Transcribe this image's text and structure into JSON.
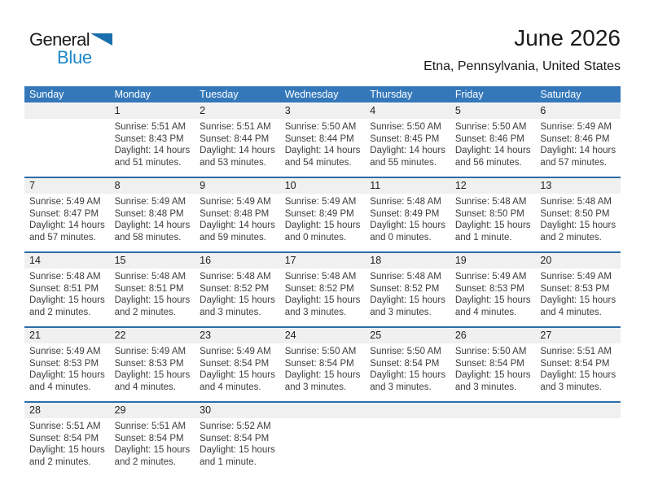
{
  "logo": {
    "part1": "General",
    "part2": "Blue",
    "triangle_icon": "blue-right-triangle"
  },
  "header": {
    "title": "June 2026",
    "subtitle": "Etna, Pennsylvania, United States"
  },
  "colors": {
    "header_bg": "#3478ba",
    "week_divider": "#2d6da8",
    "day_band_bg": "#f0f0f0",
    "logo_blue": "#1f87c9",
    "triangle_blue": "#1a6fae"
  },
  "calendar": {
    "day_headers": [
      "Sunday",
      "Monday",
      "Tuesday",
      "Wednesday",
      "Thursday",
      "Friday",
      "Saturday"
    ],
    "weeks": [
      [
        null,
        {
          "day": "1",
          "sunrise": "Sunrise: 5:51 AM",
          "sunset": "Sunset: 8:43 PM",
          "daylight": "Daylight: 14 hours and 51 minutes."
        },
        {
          "day": "2",
          "sunrise": "Sunrise: 5:51 AM",
          "sunset": "Sunset: 8:44 PM",
          "daylight": "Daylight: 14 hours and 53 minutes."
        },
        {
          "day": "3",
          "sunrise": "Sunrise: 5:50 AM",
          "sunset": "Sunset: 8:44 PM",
          "daylight": "Daylight: 14 hours and 54 minutes."
        },
        {
          "day": "4",
          "sunrise": "Sunrise: 5:50 AM",
          "sunset": "Sunset: 8:45 PM",
          "daylight": "Daylight: 14 hours and 55 minutes."
        },
        {
          "day": "5",
          "sunrise": "Sunrise: 5:50 AM",
          "sunset": "Sunset: 8:46 PM",
          "daylight": "Daylight: 14 hours and 56 minutes."
        },
        {
          "day": "6",
          "sunrise": "Sunrise: 5:49 AM",
          "sunset": "Sunset: 8:46 PM",
          "daylight": "Daylight: 14 hours and 57 minutes."
        }
      ],
      [
        {
          "day": "7",
          "sunrise": "Sunrise: 5:49 AM",
          "sunset": "Sunset: 8:47 PM",
          "daylight": "Daylight: 14 hours and 57 minutes."
        },
        {
          "day": "8",
          "sunrise": "Sunrise: 5:49 AM",
          "sunset": "Sunset: 8:48 PM",
          "daylight": "Daylight: 14 hours and 58 minutes."
        },
        {
          "day": "9",
          "sunrise": "Sunrise: 5:49 AM",
          "sunset": "Sunset: 8:48 PM",
          "daylight": "Daylight: 14 hours and 59 minutes."
        },
        {
          "day": "10",
          "sunrise": "Sunrise: 5:49 AM",
          "sunset": "Sunset: 8:49 PM",
          "daylight": "Daylight: 15 hours and 0 minutes."
        },
        {
          "day": "11",
          "sunrise": "Sunrise: 5:48 AM",
          "sunset": "Sunset: 8:49 PM",
          "daylight": "Daylight: 15 hours and 0 minutes."
        },
        {
          "day": "12",
          "sunrise": "Sunrise: 5:48 AM",
          "sunset": "Sunset: 8:50 PM",
          "daylight": "Daylight: 15 hours and 1 minute."
        },
        {
          "day": "13",
          "sunrise": "Sunrise: 5:48 AM",
          "sunset": "Sunset: 8:50 PM",
          "daylight": "Daylight: 15 hours and 2 minutes."
        }
      ],
      [
        {
          "day": "14",
          "sunrise": "Sunrise: 5:48 AM",
          "sunset": "Sunset: 8:51 PM",
          "daylight": "Daylight: 15 hours and 2 minutes."
        },
        {
          "day": "15",
          "sunrise": "Sunrise: 5:48 AM",
          "sunset": "Sunset: 8:51 PM",
          "daylight": "Daylight: 15 hours and 2 minutes."
        },
        {
          "day": "16",
          "sunrise": "Sunrise: 5:48 AM",
          "sunset": "Sunset: 8:52 PM",
          "daylight": "Daylight: 15 hours and 3 minutes."
        },
        {
          "day": "17",
          "sunrise": "Sunrise: 5:48 AM",
          "sunset": "Sunset: 8:52 PM",
          "daylight": "Daylight: 15 hours and 3 minutes."
        },
        {
          "day": "18",
          "sunrise": "Sunrise: 5:48 AM",
          "sunset": "Sunset: 8:52 PM",
          "daylight": "Daylight: 15 hours and 3 minutes."
        },
        {
          "day": "19",
          "sunrise": "Sunrise: 5:49 AM",
          "sunset": "Sunset: 8:53 PM",
          "daylight": "Daylight: 15 hours and 4 minutes."
        },
        {
          "day": "20",
          "sunrise": "Sunrise: 5:49 AM",
          "sunset": "Sunset: 8:53 PM",
          "daylight": "Daylight: 15 hours and 4 minutes."
        }
      ],
      [
        {
          "day": "21",
          "sunrise": "Sunrise: 5:49 AM",
          "sunset": "Sunset: 8:53 PM",
          "daylight": "Daylight: 15 hours and 4 minutes."
        },
        {
          "day": "22",
          "sunrise": "Sunrise: 5:49 AM",
          "sunset": "Sunset: 8:53 PM",
          "daylight": "Daylight: 15 hours and 4 minutes."
        },
        {
          "day": "23",
          "sunrise": "Sunrise: 5:49 AM",
          "sunset": "Sunset: 8:54 PM",
          "daylight": "Daylight: 15 hours and 4 minutes."
        },
        {
          "day": "24",
          "sunrise": "Sunrise: 5:50 AM",
          "sunset": "Sunset: 8:54 PM",
          "daylight": "Daylight: 15 hours and 3 minutes."
        },
        {
          "day": "25",
          "sunrise": "Sunrise: 5:50 AM",
          "sunset": "Sunset: 8:54 PM",
          "daylight": "Daylight: 15 hours and 3 minutes."
        },
        {
          "day": "26",
          "sunrise": "Sunrise: 5:50 AM",
          "sunset": "Sunset: 8:54 PM",
          "daylight": "Daylight: 15 hours and 3 minutes."
        },
        {
          "day": "27",
          "sunrise": "Sunrise: 5:51 AM",
          "sunset": "Sunset: 8:54 PM",
          "daylight": "Daylight: 15 hours and 3 minutes."
        }
      ],
      [
        {
          "day": "28",
          "sunrise": "Sunrise: 5:51 AM",
          "sunset": "Sunset: 8:54 PM",
          "daylight": "Daylight: 15 hours and 2 minutes."
        },
        {
          "day": "29",
          "sunrise": "Sunrise: 5:51 AM",
          "sunset": "Sunset: 8:54 PM",
          "daylight": "Daylight: 15 hours and 2 minutes."
        },
        {
          "day": "30",
          "sunrise": "Sunrise: 5:52 AM",
          "sunset": "Sunset: 8:54 PM",
          "daylight": "Daylight: 15 hours and 1 minute."
        },
        null,
        null,
        null,
        null
      ]
    ]
  }
}
